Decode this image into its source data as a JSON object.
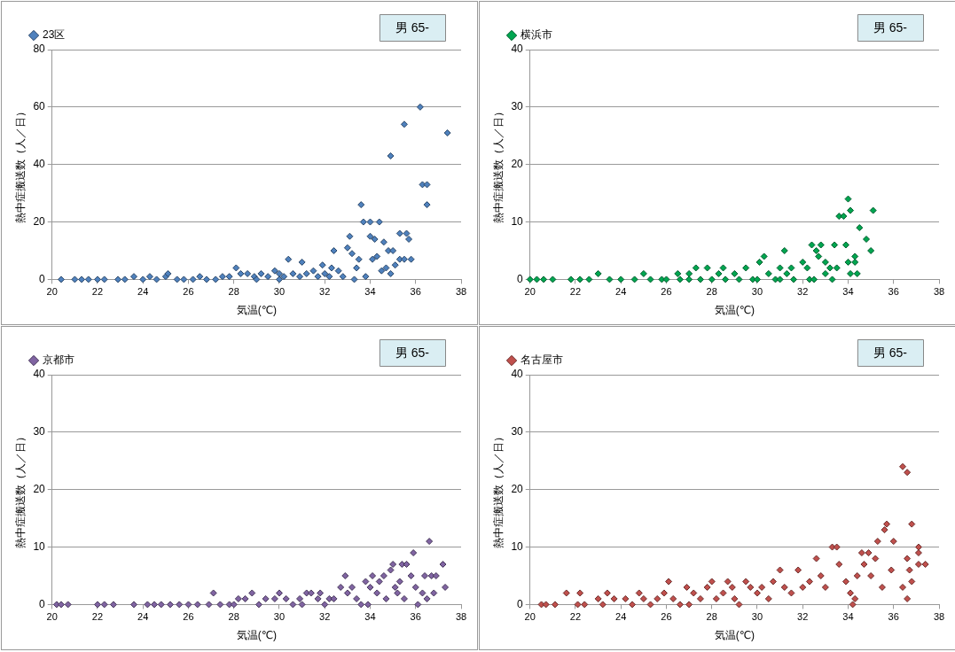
{
  "chart_data": [
    {
      "type": "scatter",
      "xlabel": "気温(℃)",
      "ylabel": "熱中症搬送数（人／日）",
      "xlim": [
        20,
        38
      ],
      "xticks": [
        20,
        22,
        24,
        26,
        28,
        30,
        32,
        34,
        36,
        38
      ],
      "ylim": [
        0,
        80
      ],
      "yticks": [
        0,
        20,
        40,
        60,
        80
      ],
      "grid": "y",
      "legend": "top left",
      "marker": "diamond",
      "annotations": [
        "男 65-"
      ],
      "series": [
        {
          "name": "23区",
          "color": "#4f81bd",
          "x": [
            20.4,
            21,
            21.3,
            21.6,
            22,
            22.3,
            22.9,
            23.2,
            23.6,
            24,
            24.3,
            24.6,
            25,
            25.1,
            25.5,
            25.8,
            26.2,
            26.5,
            26.8,
            27.2,
            27.5,
            27.8,
            28.1,
            28.3,
            28.6,
            28.9,
            29.2,
            29.5,
            29.8,
            30,
            30.2,
            30.4,
            30.6,
            30.9,
            31,
            31.2,
            31.5,
            31.7,
            31.9,
            32,
            32.3,
            32.4,
            32.6,
            32.8,
            33,
            33.1,
            33.2,
            33.4,
            33.5,
            33.6,
            33.7,
            33.8,
            34,
            34,
            34.1,
            34.2,
            34.3,
            34.4,
            34.5,
            34.6,
            34.7,
            34.8,
            34.9,
            34.9,
            35,
            35.1,
            35.3,
            35.3,
            35.5,
            35.5,
            35.6,
            35.7,
            35.8,
            36.2,
            36.3,
            36.5,
            36.5,
            37.4,
            32.2,
            33.3,
            29,
            30
          ],
          "values": [
            0,
            0,
            0,
            0,
            0,
            0,
            0,
            0,
            1,
            0,
            1,
            0,
            1,
            2,
            0,
            0,
            0,
            1,
            0,
            0,
            1,
            1,
            4,
            2,
            2,
            1,
            2,
            1,
            3,
            2,
            1,
            7,
            2,
            1,
            6,
            2,
            3,
            1,
            5,
            2,
            4,
            10,
            3,
            1,
            11,
            15,
            9,
            4,
            7,
            26,
            20,
            1,
            15,
            20,
            7,
            14,
            8,
            20,
            3,
            13,
            4,
            10,
            43,
            2,
            10,
            5,
            16,
            7,
            54,
            7,
            16,
            14,
            7,
            60,
            33,
            33,
            26,
            51,
            1,
            0,
            0,
            0
          ]
        }
      ]
    },
    {
      "type": "scatter",
      "xlabel": "気温(℃)",
      "ylabel": "熱中症搬送数（人／日）",
      "xlim": [
        20,
        38
      ],
      "xticks": [
        20,
        22,
        24,
        26,
        28,
        30,
        32,
        34,
        36,
        38
      ],
      "ylim": [
        0,
        40
      ],
      "yticks": [
        0,
        10,
        20,
        30,
        40
      ],
      "grid": "y",
      "legend": "top left",
      "marker": "diamond",
      "annotations": [
        "男 65-"
      ],
      "series": [
        {
          "name": "横浜市",
          "color": "#00a650",
          "x": [
            20,
            20.3,
            20.6,
            21,
            21.8,
            22.2,
            22.6,
            23,
            23.5,
            24,
            24.6,
            25,
            25.3,
            25.8,
            26,
            26.5,
            26.6,
            27,
            27,
            27.3,
            27.5,
            27.8,
            28,
            28.3,
            28.5,
            28.6,
            29,
            29.2,
            29.5,
            29.8,
            30,
            30.1,
            30.3,
            30.5,
            30.8,
            31,
            31,
            31.2,
            31.3,
            31.5,
            31.6,
            32,
            32.2,
            32.3,
            32.4,
            32.5,
            32.6,
            32.7,
            32.8,
            33,
            33,
            33.2,
            33.3,
            33.4,
            33.5,
            33.6,
            33.8,
            33.9,
            34,
            34,
            34.1,
            34.1,
            34.3,
            34.3,
            34.4,
            34.5,
            34.8,
            35,
            35.1
          ],
          "values": [
            0,
            0,
            0,
            0,
            0,
            0,
            0,
            1,
            0,
            0,
            0,
            1,
            0,
            0,
            0,
            1,
            0,
            1,
            0,
            2,
            0,
            2,
            0,
            1,
            2,
            0,
            1,
            0,
            2,
            0,
            0,
            3,
            4,
            1,
            0,
            2,
            0,
            5,
            1,
            2,
            0,
            3,
            2,
            0,
            6,
            0,
            5,
            4,
            6,
            3,
            1,
            2,
            0,
            6,
            2,
            11,
            11,
            6,
            14,
            3,
            12,
            1,
            3,
            4,
            1,
            9,
            7,
            5,
            12
          ]
        }
      ]
    },
    {
      "type": "scatter",
      "xlabel": "気温(℃)",
      "ylabel": "熱中症搬送数（人／日）",
      "xlim": [
        20,
        38
      ],
      "xticks": [
        20,
        22,
        24,
        26,
        28,
        30,
        32,
        34,
        36,
        38
      ],
      "ylim": [
        0,
        40
      ],
      "yticks": [
        0,
        10,
        20,
        30,
        40
      ],
      "grid": "y",
      "legend": "top left",
      "marker": "diamond",
      "annotations": [
        "男 65-"
      ],
      "series": [
        {
          "name": "京都市",
          "color": "#8064a2",
          "x": [
            20.2,
            20.4,
            20.7,
            22,
            22.3,
            22.7,
            23.6,
            24.2,
            24.5,
            24.8,
            25.2,
            25.6,
            26,
            26.4,
            26.9,
            27.1,
            27.4,
            27.8,
            28.2,
            28.5,
            28.8,
            29.1,
            29.4,
            29.8,
            30,
            30.3,
            30.6,
            30.9,
            31.2,
            31.4,
            31.7,
            31.8,
            32,
            32.2,
            32.4,
            32.7,
            32.9,
            33,
            33.2,
            33.4,
            33.6,
            33.8,
            34,
            34.1,
            34.3,
            34.4,
            34.6,
            34.7,
            34.9,
            35,
            35.1,
            35.3,
            35.4,
            35.5,
            35.6,
            35.8,
            35.9,
            36,
            36.1,
            36.3,
            36.4,
            36.5,
            36.6,
            36.7,
            36.8,
            36.9,
            37.2,
            37.3,
            33.9,
            31,
            28,
            35.2
          ],
          "values": [
            0,
            0,
            0,
            0,
            0,
            0,
            0,
            0,
            0,
            0,
            0,
            0,
            0,
            0,
            0,
            2,
            0,
            0,
            1,
            1,
            2,
            0,
            1,
            1,
            2,
            1,
            0,
            1,
            2,
            2,
            1,
            2,
            0,
            1,
            1,
            3,
            5,
            2,
            3,
            1,
            0,
            4,
            3,
            5,
            2,
            4,
            5,
            1,
            6,
            7,
            3,
            4,
            7,
            1,
            7,
            5,
            9,
            3,
            0,
            2,
            5,
            1,
            11,
            5,
            2,
            5,
            7,
            3,
            0,
            0,
            0,
            2
          ]
        }
      ]
    },
    {
      "type": "scatter",
      "xlabel": "気温(℃)",
      "ylabel": "熱中症搬送数（人／日）",
      "xlim": [
        20,
        38
      ],
      "xticks": [
        20,
        22,
        24,
        26,
        28,
        30,
        32,
        34,
        36,
        38
      ],
      "ylim": [
        0,
        40
      ],
      "yticks": [
        0,
        10,
        20,
        30,
        40
      ],
      "grid": "y",
      "legend": "top left",
      "marker": "diamond",
      "annotations": [
        "男 65-"
      ],
      "series": [
        {
          "name": "名古屋市",
          "color": "#c0504d",
          "x": [
            20.5,
            20.7,
            21.1,
            21.6,
            22.1,
            22.2,
            22.4,
            23,
            23.2,
            23.4,
            23.7,
            24.2,
            24.5,
            24.8,
            25,
            25.3,
            25.6,
            25.9,
            26.1,
            26.3,
            26.6,
            26.9,
            27.2,
            27.5,
            27.8,
            28,
            28.2,
            28.5,
            28.7,
            28.9,
            29.2,
            29.5,
            29.7,
            30,
            30.2,
            30.5,
            30.7,
            31,
            31.2,
            31.5,
            31.8,
            32,
            32.3,
            32.6,
            32.8,
            33,
            33.3,
            33.5,
            33.6,
            33.9,
            34.1,
            34.3,
            34.4,
            34.6,
            34.7,
            34.9,
            35,
            35.2,
            35.3,
            35.5,
            35.6,
            35.7,
            35.9,
            36,
            36.4,
            36.4,
            36.6,
            36.6,
            36.6,
            36.7,
            36.8,
            36.8,
            37.1,
            37.1,
            37.1,
            37.4,
            29,
            27,
            34.2
          ],
          "values": [
            0,
            0,
            0,
            2,
            0,
            2,
            0,
            1,
            0,
            2,
            1,
            1,
            0,
            2,
            1,
            0,
            1,
            2,
            4,
            1,
            0,
            3,
            2,
            1,
            3,
            4,
            1,
            2,
            4,
            3,
            0,
            4,
            3,
            2,
            3,
            1,
            4,
            6,
            3,
            2,
            6,
            3,
            4,
            8,
            5,
            3,
            10,
            10,
            7,
            4,
            2,
            1,
            5,
            9,
            7,
            9,
            5,
            8,
            11,
            3,
            13,
            14,
            6,
            11,
            24,
            3,
            23,
            8,
            1,
            6,
            14,
            4,
            10,
            9,
            7,
            7,
            1,
            0,
            0
          ]
        }
      ]
    }
  ]
}
